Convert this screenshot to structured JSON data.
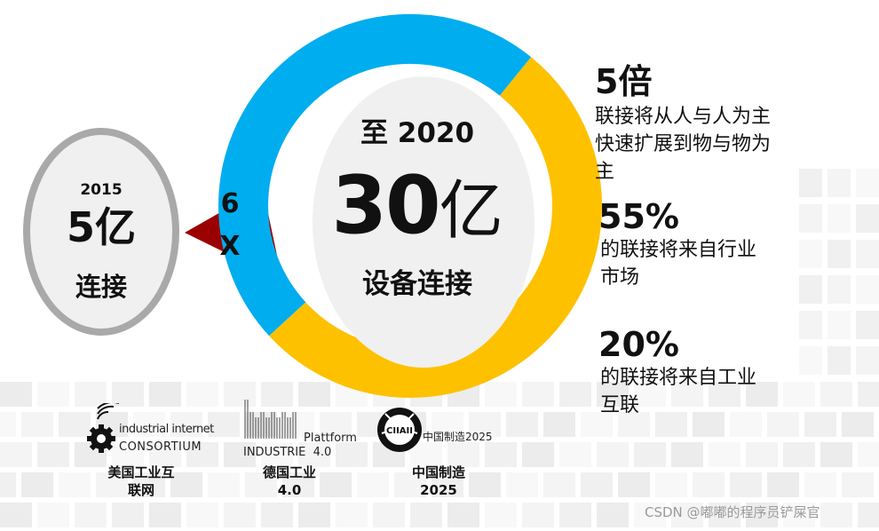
{
  "colors": {
    "blue": "#00adee",
    "yellow": "#fdc100",
    "dark_red": "#9b0000",
    "circle_gray": "#a9a9a9",
    "circle_fill": "#f0f0f0"
  },
  "left_circle": {
    "year": "2015",
    "amount": "5亿",
    "label": "连接"
  },
  "multiplier": {
    "line1": "6",
    "line2": "X"
  },
  "main_circle": {
    "top_label": "至 2020",
    "amount_number": "30",
    "amount_unit": "亿",
    "label": "设备连接"
  },
  "stats": [
    {
      "value": "5倍",
      "lines": [
        "联接将从人与人为主",
        "快速扩展到物与物为",
        "主"
      ]
    },
    {
      "value": "55%",
      "lines": [
        "的联接将来自行业",
        "市场"
      ]
    },
    {
      "value": "20%",
      "lines": [
        "的联接将来自工业",
        "互联"
      ]
    }
  ],
  "logos": [
    {
      "icon": "gear-wifi-icon",
      "text_line1": "industrial internet",
      "text_line2": "CONSORTIUM",
      "caption_line1": "美国工业互",
      "caption_line2": "联网"
    },
    {
      "icon": "factory-icon",
      "text_line1": "Plattform",
      "text_line2": "INDUSTRIE  4.0",
      "caption_line1": "德国工业",
      "caption_line2": "4.0"
    },
    {
      "icon": "ciiaii-badge-icon",
      "badge_text": "CIIAII",
      "text_line1": "中国制造2025",
      "caption_line1": "中国制造",
      "caption_line2": "2025"
    }
  ],
  "watermark": "CSDN @嘟嘟的程序员铲屎官"
}
